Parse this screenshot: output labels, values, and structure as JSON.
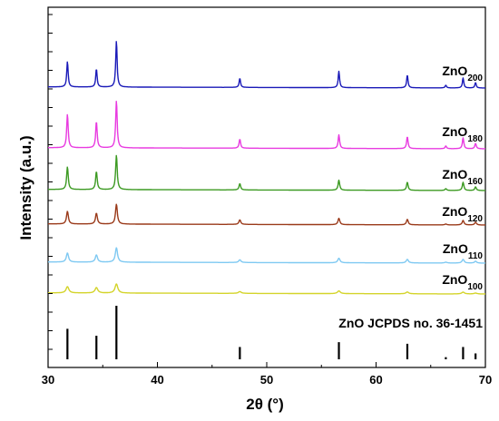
{
  "chart_data": {
    "type": "line",
    "xlabel": "2θ (°)",
    "ylabel": "Intensity (a.u.)",
    "xlim": [
      30,
      70
    ],
    "xticks": [
      "30",
      "40",
      "50",
      "60",
      "70"
    ],
    "grid": false,
    "reference": {
      "name": "ZnO JCPDS no. 36-1451",
      "peaks": [
        {
          "x": 31.77,
          "rel": 0.57
        },
        {
          "x": 34.42,
          "rel": 0.44
        },
        {
          "x": 36.25,
          "rel": 1.0
        },
        {
          "x": 47.54,
          "rel": 0.23
        },
        {
          "x": 56.6,
          "rel": 0.32
        },
        {
          "x": 62.86,
          "rel": 0.29
        },
        {
          "x": 66.38,
          "rel": 0.04
        },
        {
          "x": 67.96,
          "rel": 0.23
        },
        {
          "x": 69.1,
          "rel": 0.11
        }
      ]
    },
    "series": [
      {
        "name": "ZnO",
        "sub": "100",
        "color": "#d4d42a",
        "peaks": [
          {
            "x": 31.77,
            "h": 7
          },
          {
            "x": 34.42,
            "h": 6
          },
          {
            "x": 36.25,
            "h": 10
          },
          {
            "x": 47.54,
            "h": 2
          },
          {
            "x": 56.6,
            "h": 3
          },
          {
            "x": 62.86,
            "h": 2
          },
          {
            "x": 67.96,
            "h": 2
          },
          {
            "x": 69.1,
            "h": 1
          }
        ]
      },
      {
        "name": "ZnO",
        "sub": "110",
        "color": "#7fc9f2",
        "peaks": [
          {
            "x": 31.77,
            "h": 10
          },
          {
            "x": 34.42,
            "h": 8
          },
          {
            "x": 36.25,
            "h": 16
          },
          {
            "x": 47.54,
            "h": 3
          },
          {
            "x": 56.6,
            "h": 5
          },
          {
            "x": 62.86,
            "h": 4
          },
          {
            "x": 66.38,
            "h": 1
          },
          {
            "x": 67.96,
            "h": 4
          },
          {
            "x": 69.1,
            "h": 2
          }
        ]
      },
      {
        "name": "ZnO",
        "sub": "120",
        "color": "#9a3a1a",
        "peaks": [
          {
            "x": 31.77,
            "h": 14
          },
          {
            "x": 34.42,
            "h": 12
          },
          {
            "x": 36.25,
            "h": 22
          },
          {
            "x": 47.54,
            "h": 5
          },
          {
            "x": 56.6,
            "h": 7
          },
          {
            "x": 62.86,
            "h": 6
          },
          {
            "x": 66.38,
            "h": 1
          },
          {
            "x": 67.96,
            "h": 5
          },
          {
            "x": 69.1,
            "h": 3
          }
        ]
      },
      {
        "name": "ZnO",
        "sub": "160",
        "color": "#3c9a22",
        "peaks": [
          {
            "x": 31.77,
            "h": 25
          },
          {
            "x": 34.42,
            "h": 20
          },
          {
            "x": 36.25,
            "h": 38
          },
          {
            "x": 47.54,
            "h": 7
          },
          {
            "x": 56.6,
            "h": 11
          },
          {
            "x": 62.86,
            "h": 9
          },
          {
            "x": 66.38,
            "h": 2
          },
          {
            "x": 67.96,
            "h": 9
          },
          {
            "x": 69.1,
            "h": 4
          }
        ]
      },
      {
        "name": "ZnO",
        "sub": "180",
        "color": "#e83be0",
        "peaks": [
          {
            "x": 31.77,
            "h": 37
          },
          {
            "x": 34.42,
            "h": 29
          },
          {
            "x": 36.25,
            "h": 52
          },
          {
            "x": 47.54,
            "h": 10
          },
          {
            "x": 56.6,
            "h": 15
          },
          {
            "x": 62.86,
            "h": 13
          },
          {
            "x": 66.38,
            "h": 3
          },
          {
            "x": 67.96,
            "h": 12
          },
          {
            "x": 69.1,
            "h": 6
          }
        ]
      },
      {
        "name": "ZnO",
        "sub": "200",
        "color": "#1a1ab8",
        "peaks": [
          {
            "x": 31.77,
            "h": 28
          },
          {
            "x": 34.42,
            "h": 20
          },
          {
            "x": 36.25,
            "h": 51
          },
          {
            "x": 47.54,
            "h": 10
          },
          {
            "x": 56.6,
            "h": 18
          },
          {
            "x": 62.86,
            "h": 14
          },
          {
            "x": 66.38,
            "h": 3
          },
          {
            "x": 67.96,
            "h": 11
          },
          {
            "x": 69.1,
            "h": 6
          }
        ]
      }
    ]
  }
}
